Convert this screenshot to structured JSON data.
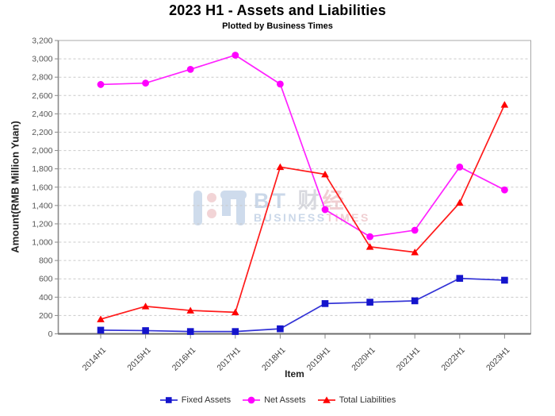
{
  "header": {
    "title": "2023 H1 - Assets and Liabilities",
    "subtitle": "Plotted by Business Times"
  },
  "watermark": {
    "brand_bt": "BT",
    "brand_cai": "财",
    "brand_jing": "经",
    "brand_en_blue": "BUSINESS",
    "brand_en_red": "TIMES"
  },
  "chart_data": {
    "type": "line",
    "title": "2023 H1 - Assets and Liabilities",
    "subtitle": "Plotted by Business Times",
    "xlabel": "Item",
    "ylabel": "Amount(RMB Million Yuan)",
    "ylim": [
      0,
      3200
    ],
    "ytick_step": 200,
    "grid": true,
    "legend_position": "bottom",
    "categories": [
      "2014H1",
      "2015H1",
      "2016H1",
      "2017H1",
      "2018H1",
      "2019H1",
      "2020H1",
      "2021H1",
      "2022H1",
      "2023H1"
    ],
    "series": [
      {
        "name": "Fixed Assets",
        "color": "#1414CC",
        "line_color": "#3333D6",
        "marker": "square",
        "values": [
          40,
          35,
          25,
          25,
          55,
          330,
          345,
          360,
          605,
          585
        ]
      },
      {
        "name": "Net Assets",
        "color": "#FF00FF",
        "line_color": "#FF22FF",
        "marker": "circle",
        "values": [
          2720,
          2735,
          2885,
          3040,
          2725,
          1355,
          1060,
          1130,
          1820,
          1570
        ]
      },
      {
        "name": "Total Liabilities",
        "color": "#FF0000",
        "line_color": "#FF1A1A",
        "marker": "triangle",
        "values": [
          160,
          300,
          255,
          235,
          1820,
          1740,
          950,
          890,
          1430,
          2500
        ]
      }
    ]
  }
}
